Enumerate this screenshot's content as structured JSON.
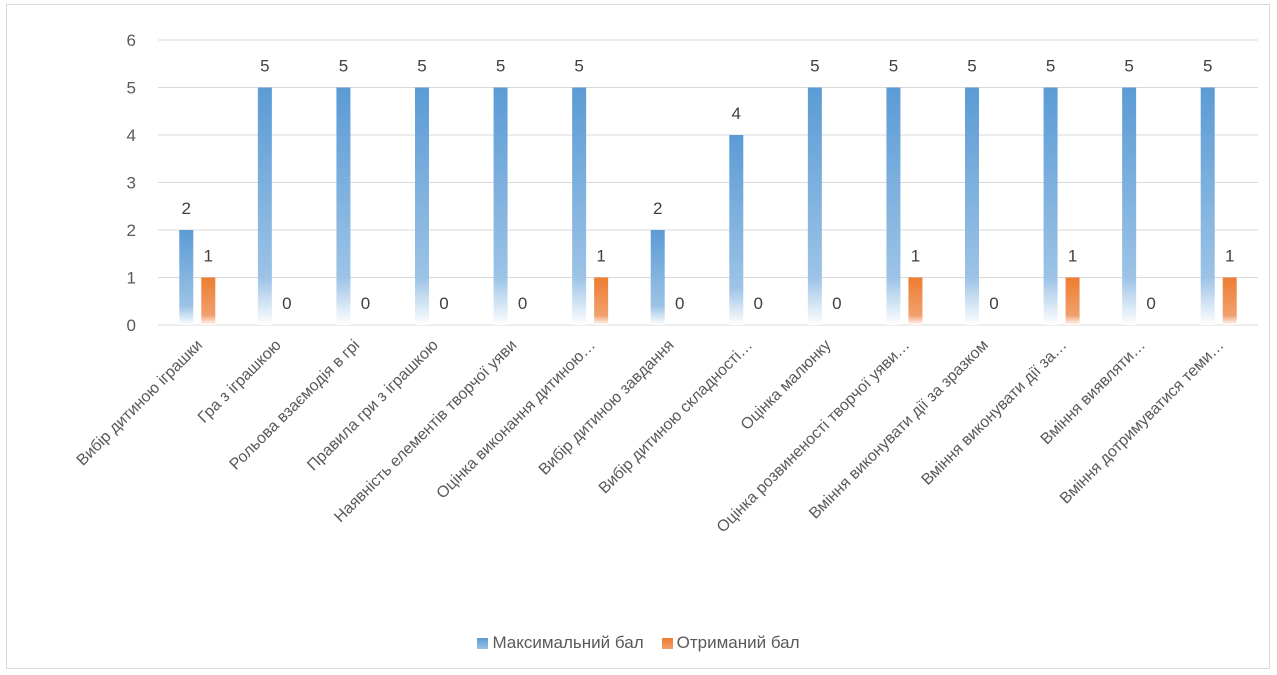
{
  "chart_data": {
    "type": "bar",
    "categories": [
      "Вибір дитиною іграшки",
      "Гра з іграшкою",
      "Рольова взаємодія в грі",
      "Правила гри з іграшкою",
      "Наявність елементів творчої уяви",
      "Оцінка виконання дитиною…",
      "Вибір дитиною завдання",
      "Вибір дитиною складності…",
      "Оцінка малюнку",
      "Оцінка розвиненості творчої уяви…",
      "Вміння виконувати дії за зразком",
      "Вміння виконувати дії за…",
      "Вміння виявляти…",
      "Вміння дотримуватися теми…"
    ],
    "series": [
      {
        "name": "Максимальний бал",
        "values": [
          2,
          5,
          5,
          5,
          5,
          5,
          2,
          4,
          5,
          5,
          5,
          5,
          5,
          5
        ],
        "color": "#5b9bd5"
      },
      {
        "name": "Отриманий бал",
        "values": [
          1,
          0,
          0,
          0,
          0,
          1,
          0,
          0,
          0,
          1,
          0,
          1,
          0,
          1
        ],
        "color": "#ed7d31"
      }
    ],
    "ylim": [
      0,
      6
    ],
    "yticks": [
      "0",
      "1",
      "2",
      "3",
      "4",
      "5",
      "6"
    ],
    "grid": true,
    "legend_position": "bottom",
    "data_labels": true
  }
}
